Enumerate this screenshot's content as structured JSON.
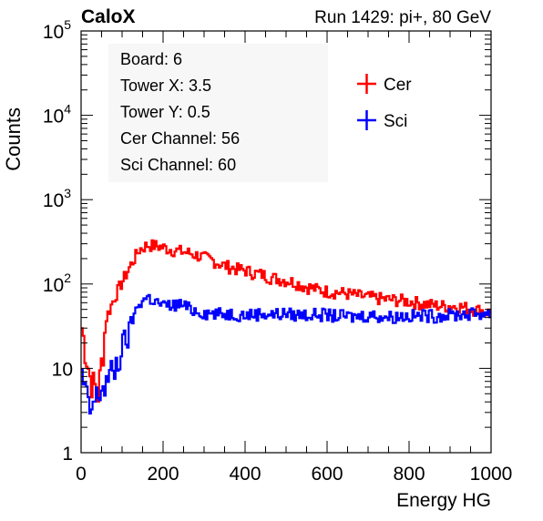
{
  "chart_data": {
    "type": "line",
    "title_left": "CaloX",
    "title_right": "Run 1429: pi+, 80 GeV",
    "xlabel": "Energy HG",
    "ylabel": "Counts",
    "xlim": [
      0,
      1000
    ],
    "ylim": [
      1,
      100000
    ],
    "yscale": "log",
    "grid": false,
    "x_ticks": [
      {
        "value": 0,
        "label": "0"
      },
      {
        "value": 200,
        "label": "200"
      },
      {
        "value": 400,
        "label": "400"
      },
      {
        "value": 600,
        "label": "600"
      },
      {
        "value": 800,
        "label": "800"
      },
      {
        "value": 1000,
        "label": "1000"
      }
    ],
    "y_ticks": [
      {
        "value": 1,
        "base": "1",
        "exp": ""
      },
      {
        "value": 10,
        "base": "10",
        "exp": ""
      },
      {
        "value": 100,
        "base": "10",
        "exp": "2"
      },
      {
        "value": 1000,
        "base": "10",
        "exp": "3"
      },
      {
        "value": 10000,
        "base": "10",
        "exp": "4"
      },
      {
        "value": 100000,
        "base": "10",
        "exp": "5"
      }
    ],
    "info_lines": [
      "Board: 6",
      "Tower X: 3.5",
      "Tower Y: 0.5",
      "Cer Channel: 56",
      "Sci Channel: 60"
    ],
    "legend_position": "top-right",
    "series": [
      {
        "name": "Cer",
        "color": "#ff0000",
        "x": [
          0,
          20,
          40,
          60,
          80,
          100,
          120,
          140,
          160,
          180,
          200,
          220,
          240,
          260,
          280,
          300,
          320,
          340,
          360,
          380,
          400,
          420,
          440,
          460,
          480,
          500,
          520,
          540,
          560,
          580,
          600,
          620,
          640,
          660,
          680,
          700,
          720,
          740,
          760,
          780,
          800,
          820,
          840,
          860,
          880,
          900,
          920,
          940,
          960,
          980,
          1000
        ],
        "y": [
          30,
          8,
          5,
          40,
          70,
          110,
          170,
          255,
          290,
          285,
          270,
          255,
          245,
          235,
          220,
          205,
          190,
          170,
          160,
          150,
          145,
          135,
          130,
          120,
          115,
          110,
          105,
          95,
          90,
          85,
          82,
          80,
          78,
          75,
          72,
          70,
          68,
          66,
          65,
          64,
          62,
          60,
          58,
          56,
          55,
          55,
          54,
          52,
          50,
          48,
          45
        ]
      },
      {
        "name": "Sci",
        "color": "#0000ff",
        "x": [
          0,
          20,
          40,
          60,
          80,
          100,
          120,
          140,
          160,
          180,
          200,
          220,
          240,
          260,
          280,
          300,
          320,
          340,
          360,
          380,
          400,
          420,
          440,
          460,
          480,
          500,
          520,
          540,
          560,
          580,
          600,
          620,
          640,
          660,
          680,
          700,
          720,
          740,
          760,
          780,
          800,
          820,
          840,
          860,
          880,
          900,
          920,
          940,
          960,
          980,
          1000
        ],
        "y": [
          8,
          3,
          5,
          7,
          10,
          18,
          35,
          60,
          70,
          62,
          55,
          56,
          58,
          52,
          48,
          46,
          45,
          44,
          45,
          44,
          43,
          44,
          45,
          44,
          44,
          45,
          43,
          44,
          43,
          44,
          43,
          42,
          42,
          41,
          42,
          43,
          42,
          41,
          41,
          42,
          42,
          42,
          43,
          42,
          43,
          43,
          44,
          44,
          45,
          45,
          45
        ]
      }
    ]
  }
}
